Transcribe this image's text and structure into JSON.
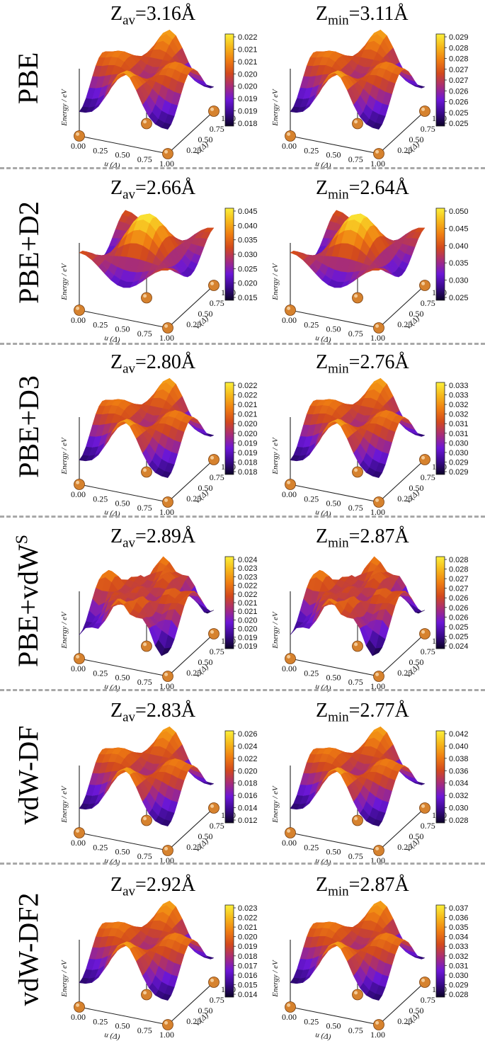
{
  "figure": {
    "axis_labels": {
      "energy": "Energy / eV",
      "u": "u (Δ)",
      "v": "v (Δ)"
    },
    "u_ticks": [
      "0.00",
      "0.25",
      "0.50",
      "0.75",
      "1.00"
    ],
    "v_ticks": [
      "0.25",
      "0.50",
      "0.75",
      "1.00"
    ],
    "colormap": [
      "#0b0326",
      "#3a0a8c",
      "#6c17d6",
      "#a62c7a",
      "#d2491d",
      "#ef7d12",
      "#f6b71b",
      "#fbef3a"
    ],
    "sphere_color": "#d6822e",
    "rows": [
      {
        "method": "PBE",
        "method_sup": "",
        "panels": [
          {
            "z_symbol": "Z",
            "z_sub": "av",
            "z_value": "=3.16Å",
            "colorbar_ticks": [
              "0.022",
              "0.021",
              "0.021",
              "0.020",
              "0.020",
              "0.019",
              "0.019",
              "0.018"
            ]
          },
          {
            "z_symbol": "Z",
            "z_sub": "min",
            "z_value": "=3.11Å",
            "colorbar_ticks": [
              "0.029",
              "0.028",
              "0.028",
              "0.027",
              "0.027",
              "0.026",
              "0.026",
              "0.025",
              "0.025"
            ]
          }
        ]
      },
      {
        "method": "PBE+D2",
        "method_sup": "",
        "panels": [
          {
            "z_symbol": "Z",
            "z_sub": "av",
            "z_value": "=2.66Å",
            "colorbar_ticks": [
              "0.045",
              "0.040",
              "0.035",
              "0.030",
              "0.025",
              "0.020",
              "0.015"
            ]
          },
          {
            "z_symbol": "Z",
            "z_sub": "min",
            "z_value": "=2.64Å",
            "colorbar_ticks": [
              "0.050",
              "0.045",
              "0.040",
              "0.035",
              "0.030",
              "0.025"
            ]
          }
        ]
      },
      {
        "method": "PBE+D3",
        "method_sup": "",
        "panels": [
          {
            "z_symbol": "Z",
            "z_sub": "av",
            "z_value": "=2.80Å",
            "colorbar_ticks": [
              "0.022",
              "0.022",
              "0.021",
              "0.021",
              "0.020",
              "0.020",
              "0.019",
              "0.019",
              "0.018",
              "0.018"
            ]
          },
          {
            "z_symbol": "Z",
            "z_sub": "min",
            "z_value": "=2.76Å",
            "colorbar_ticks": [
              "0.033",
              "0.033",
              "0.032",
              "0.032",
              "0.031",
              "0.031",
              "0.030",
              "0.030",
              "0.029",
              "0.029"
            ]
          }
        ]
      },
      {
        "method": "PBE+vdW",
        "method_sup": "S",
        "panels": [
          {
            "z_symbol": "Z",
            "z_sub": "av",
            "z_value": "=2.89Å",
            "colorbar_ticks": [
              "0.024",
              "0.023",
              "0.023",
              "0.022",
              "0.022",
              "0.021",
              "0.021",
              "0.020",
              "0.020",
              "0.019",
              "0.019"
            ]
          },
          {
            "z_symbol": "Z",
            "z_sub": "min",
            "z_value": "=2.87Å",
            "colorbar_ticks": [
              "0.028",
              "0.028",
              "0.027",
              "0.027",
              "0.026",
              "0.026",
              "0.026",
              "0.025",
              "0.025",
              "0.024"
            ]
          }
        ]
      },
      {
        "method": "vdW-DF",
        "method_sup": "",
        "panels": [
          {
            "z_symbol": "Z",
            "z_sub": "av",
            "z_value": "=2.83Å",
            "colorbar_ticks": [
              "0.026",
              "0.024",
              "0.022",
              "0.020",
              "0.018",
              "0.016",
              "0.014",
              "0.012"
            ]
          },
          {
            "z_symbol": "Z",
            "z_sub": "min",
            "z_value": "=2.77Å",
            "colorbar_ticks": [
              "0.042",
              "0.040",
              "0.038",
              "0.036",
              "0.034",
              "0.032",
              "0.030",
              "0.028"
            ]
          }
        ]
      },
      {
        "method": "vdW-DF2",
        "method_sup": "",
        "panels": [
          {
            "z_symbol": "Z",
            "z_sub": "av",
            "z_value": "=2.92Å",
            "colorbar_ticks": [
              "0.023",
              "0.022",
              "0.021",
              "0.020",
              "0.019",
              "0.018",
              "0.017",
              "0.016",
              "0.015",
              "0.014"
            ]
          },
          {
            "z_symbol": "Z",
            "z_sub": "min",
            "z_value": "=2.87Å",
            "colorbar_ticks": [
              "0.037",
              "0.036",
              "0.035",
              "0.034",
              "0.033",
              "0.032",
              "0.031",
              "0.030",
              "0.029",
              "0.028"
            ]
          }
        ]
      }
    ]
  }
}
